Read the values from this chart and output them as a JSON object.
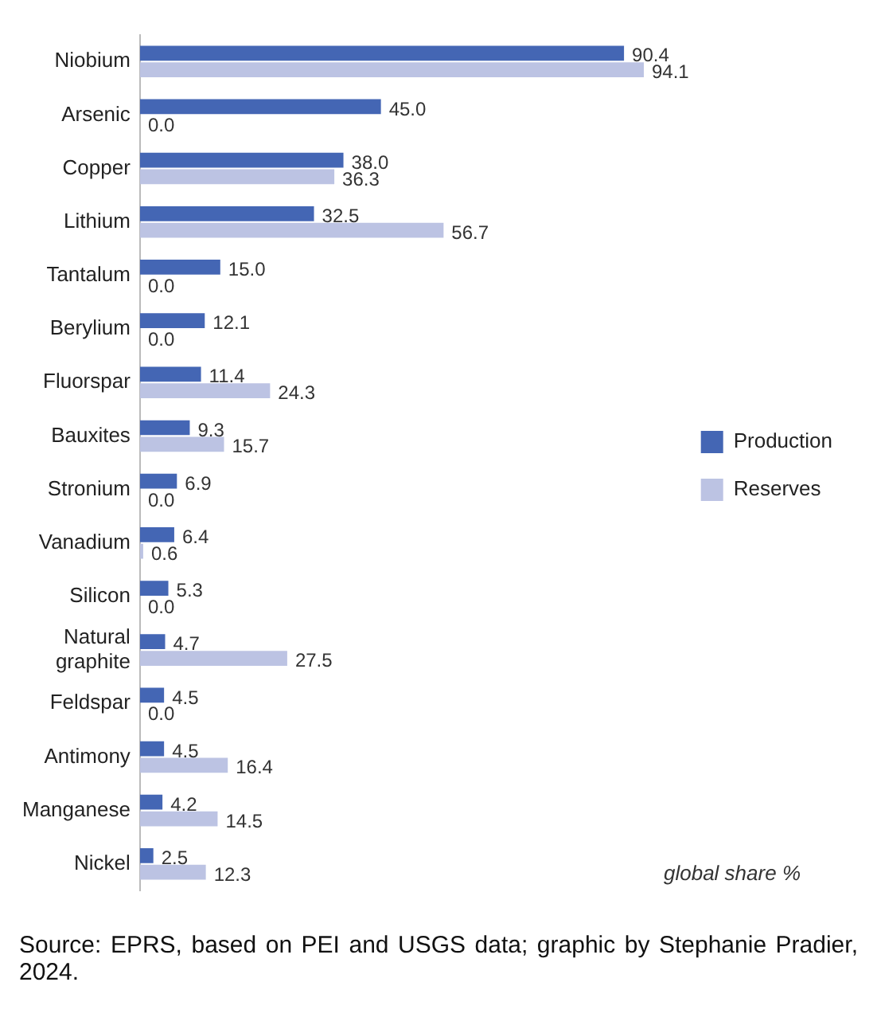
{
  "chart_data": {
    "type": "bar",
    "orientation": "horizontal",
    "legend": "right",
    "categories": [
      "Niobium",
      "Arsenic",
      "Copper",
      "Lithium",
      "Tantalum",
      "Berylium",
      "Fluorspar",
      "Bauxites",
      "Stronium",
      "Vanadium",
      "Silicon",
      "Natural graphite",
      "Feldspar",
      "Antimony",
      "Manganese",
      "Nickel"
    ],
    "series": [
      {
        "name": "Production",
        "color": "#4466b4",
        "values": [
          90.4,
          45,
          38,
          32.5,
          15,
          12.1,
          11.4,
          9.3,
          6.9,
          6.4,
          5.3,
          4.7,
          4.5,
          4.5,
          4.2,
          2.5
        ],
        "value_labels": [
          "90.4",
          "45.0",
          "38.0",
          "32.5",
          "15.0",
          "12.1",
          "11.4",
          "9.3",
          "6.9",
          "6.4",
          "5.3",
          "4.7",
          "4.5",
          "4.5",
          "4.2",
          "2.5"
        ]
      },
      {
        "name": "Reserves",
        "color": "#bcc3e3",
        "values": [
          94.1,
          0,
          36.3,
          56.7,
          0,
          0,
          24.3,
          15.7,
          0,
          0.6,
          0,
          27.5,
          0,
          16.4,
          14.5,
          12.3
        ],
        "value_labels": [
          "94.1",
          "0.0",
          "36.3",
          "56.7",
          "0.0",
          "0.0",
          "24.3",
          "15.7",
          "0.0",
          "0.6",
          "0.0",
          "27.5",
          "0.0",
          "16.4",
          "14.5",
          "12.3"
        ]
      }
    ],
    "annotations": [
      "global share %",
      "Source: EPRS, based on PEI and USGS data; graphic by Stephanie Pradier, 2024."
    ]
  }
}
